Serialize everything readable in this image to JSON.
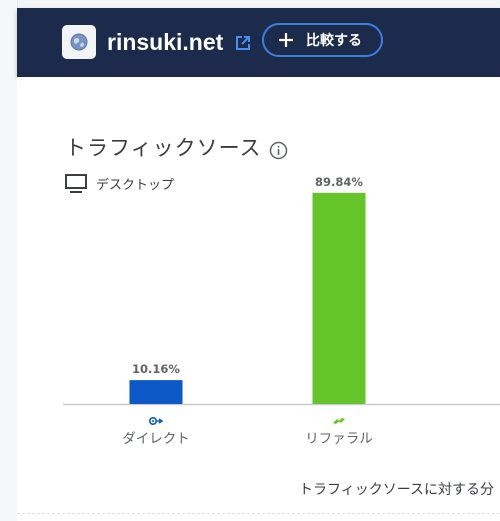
{
  "header": {
    "site_name": "rinsuki.net",
    "compare_label": "比較する",
    "background": "#1c2a4b",
    "accent": "#3d7fe0"
  },
  "card": {
    "title": "トラフィックソース",
    "device_label": "デスクトップ",
    "footer_note": "トラフィックソースに対する分"
  },
  "chart_data": {
    "type": "bar",
    "categories": [
      "ダイレクト",
      "リファラル"
    ],
    "values": [
      10.16,
      89.84
    ],
    "value_labels": [
      "10.16%",
      "89.84%"
    ],
    "colors": [
      "#0c58c9",
      "#64c42a"
    ],
    "icons": [
      "direct-icon",
      "referral-icon"
    ],
    "ylim": [
      0,
      100
    ],
    "grid": false
  }
}
